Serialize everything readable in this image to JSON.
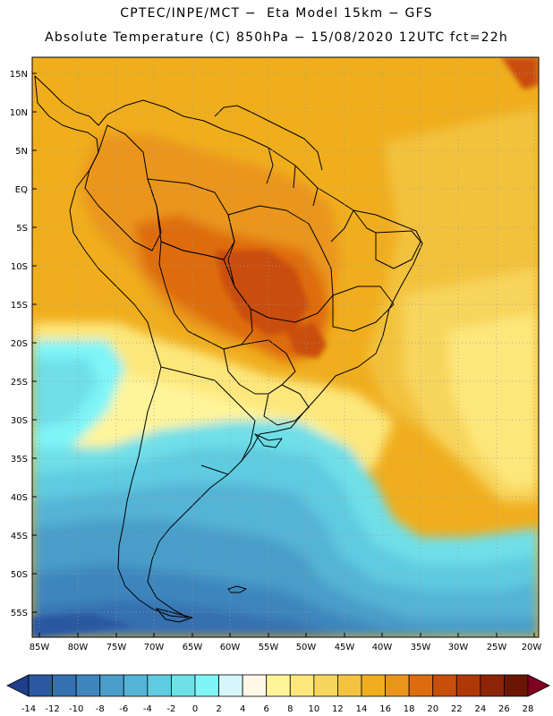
{
  "header": {
    "line1": "CPTEC/INPE/MCT −  Eta Model 15km − GFS",
    "line2": "Absolute Temperature (C) 850hPa − 15/08/2020 12UTC fct=22h"
  },
  "map": {
    "lat_labels": [
      "15N",
      "10N",
      "5N",
      "EQ",
      "5S",
      "10S",
      "15S",
      "20S",
      "25S",
      "30S",
      "35S",
      "40S",
      "45S",
      "50S",
      "55S"
    ],
    "lon_labels": [
      "85W",
      "80W",
      "75W",
      "70W",
      "65W",
      "60W",
      "55W",
      "50W",
      "45W",
      "40W",
      "35W",
      "30W",
      "25W",
      "20W"
    ],
    "lat_range": [
      17.5,
      -58
    ],
    "lon_range": [
      -86,
      -19.5
    ]
  },
  "colorbar": {
    "labels": [
      "-14",
      "-12",
      "-10",
      "-8",
      "-6",
      "-4",
      "-2",
      "0",
      "2",
      "4",
      "6",
      "8",
      "10",
      "12",
      "14",
      "16",
      "18",
      "20",
      "22",
      "24",
      "26",
      "28"
    ],
    "colors": [
      "#1f3f8c",
      "#2b58a0",
      "#3570b0",
      "#3e86bd",
      "#4a9ec9",
      "#55b4d6",
      "#5fcbe0",
      "#6fdfe8",
      "#7ff5f8",
      "#d6f6fb",
      "#fff8e6",
      "#fff49a",
      "#fde77b",
      "#f8d55c",
      "#f3c23e",
      "#f0ae1e",
      "#ea951a",
      "#de6c0e",
      "#c94e0a",
      "#b03808",
      "#8e2407",
      "#6b1505",
      "#800020"
    ]
  }
}
